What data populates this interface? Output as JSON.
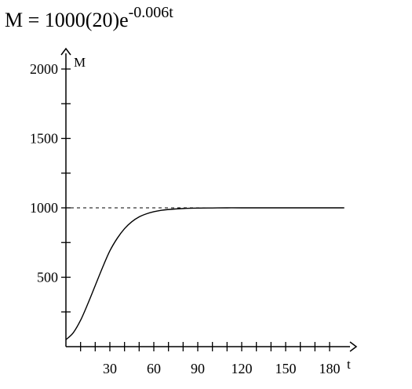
{
  "formula": {
    "lhs": "M = 1000(20)e",
    "exponent": "-0.006t"
  },
  "chart_data": {
    "type": "line",
    "title": "",
    "xlabel": "t",
    "ylabel": "M",
    "xlim": [
      0,
      190
    ],
    "ylim": [
      0,
      2100
    ],
    "x_ticks": [
      10,
      20,
      30,
      40,
      50,
      60,
      70,
      80,
      90,
      100,
      110,
      120,
      130,
      140,
      150,
      160,
      170,
      180
    ],
    "x_tick_labels": [
      {
        "value": 30,
        "label": "30"
      },
      {
        "value": 60,
        "label": "60"
      },
      {
        "value": 90,
        "label": "90"
      },
      {
        "value": 120,
        "label": "120"
      },
      {
        "value": 150,
        "label": "150"
      },
      {
        "value": 180,
        "label": "180"
      }
    ],
    "y_ticks": [
      250,
      500,
      750,
      1000,
      1250,
      1500,
      1750,
      2000
    ],
    "y_tick_labels": [
      {
        "value": 500,
        "label": "500"
      },
      {
        "value": 1000,
        "label": "1000"
      },
      {
        "value": 1500,
        "label": "1500"
      },
      {
        "value": 2000,
        "label": "2000"
      }
    ],
    "asymptote": {
      "y": 1000,
      "style": "dashed"
    },
    "series": [
      {
        "x": [
          0,
          5,
          10,
          15,
          20,
          25,
          30,
          35,
          40,
          45,
          50,
          55,
          60,
          65,
          70,
          80,
          90,
          100,
          110,
          120,
          140,
          160,
          180,
          190
        ],
        "y": [
          50,
          100,
          190,
          310,
          440,
          570,
          690,
          780,
          850,
          900,
          935,
          957,
          972,
          982,
          988,
          995,
          998,
          999,
          1000,
          1000,
          1000,
          1000,
          1000,
          1000
        ]
      }
    ],
    "grid": false,
    "legend": "none"
  }
}
